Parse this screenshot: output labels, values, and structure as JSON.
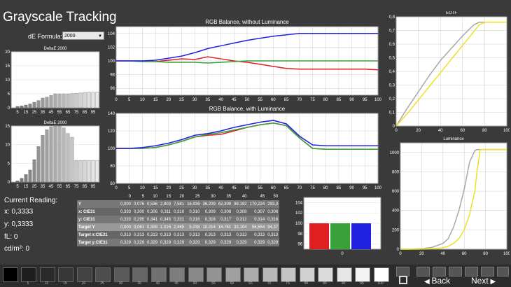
{
  "app_title": "Grayscale Tracking",
  "de_formula": {
    "label": "dE Formula:",
    "value": "2000"
  },
  "colors": {
    "red": "#e02020",
    "green": "#3aa03a",
    "blue": "#2020e0",
    "gray_curve": "#a8a8a8",
    "yellow_curve": "#f0e020"
  },
  "deltae_upper": {
    "title": "DeltaE 2000",
    "y_ticks": [
      "0",
      "5",
      "10",
      "15",
      "20"
    ],
    "x_ticks": [
      "5",
      "15",
      "25",
      "35",
      "45",
      "55",
      "65",
      "75",
      "85",
      "95"
    ],
    "ylim": [
      0,
      20
    ],
    "values": [
      0,
      0.5,
      0.7,
      1.0,
      1.4,
      2.0,
      2.6,
      3.5,
      3.8,
      4.4,
      5.0,
      5.0,
      5.0,
      5.0,
      5.1,
      5.2,
      5.3,
      5.5,
      5.6,
      5.6,
      5.7
    ]
  },
  "deltae_lower": {
    "title": "DeltaE 2000",
    "y_ticks": [
      "0",
      "5",
      "10",
      "15"
    ],
    "x_ticks": [
      "5",
      "15",
      "25",
      "35",
      "45",
      "55",
      "65",
      "75",
      "85",
      "95"
    ],
    "ylim": [
      0,
      15
    ],
    "values": [
      0,
      0.3,
      1.0,
      2.0,
      3.2,
      6.0,
      9.5,
      12.5,
      14.0,
      14.8,
      14.9,
      15.0,
      14.5,
      13.0,
      12.0,
      5.8,
      5.8,
      5.8,
      5.8,
      5.8,
      5.8
    ]
  },
  "rgb_without_lum": {
    "title": "RGB Balance, without Luminance",
    "y_ticks": [
      "96",
      "98",
      "100",
      "102",
      "104"
    ],
    "x_ticks": [
      "0",
      "5",
      "10",
      "15",
      "20",
      "25",
      "30",
      "35",
      "40",
      "45",
      "50",
      "55",
      "60",
      "65",
      "70",
      "75",
      "80",
      "85",
      "90",
      "95",
      "100"
    ],
    "ylim": [
      95,
      105
    ],
    "x": [
      0,
      5,
      10,
      15,
      20,
      25,
      30,
      35,
      40,
      45,
      50,
      55,
      60,
      65,
      70,
      75,
      80,
      85,
      90,
      95,
      100
    ],
    "series": [
      {
        "name": "Red",
        "values": [
          100,
          100,
          100,
          99.9,
          100.1,
          100.3,
          100.2,
          100.6,
          100.3,
          100.0,
          99.8,
          99.5,
          99.2,
          98.9,
          98.8,
          98.8,
          98.8,
          98.8,
          98.8,
          98.8,
          98.7
        ]
      },
      {
        "name": "Green",
        "values": [
          100,
          100,
          99.9,
          99.9,
          99.8,
          99.8,
          99.8,
          99.7,
          99.8,
          99.9,
          100,
          100,
          100,
          100,
          100,
          100,
          100,
          100,
          100,
          100,
          100
        ]
      },
      {
        "name": "Blue",
        "values": [
          100,
          100,
          100,
          100.1,
          100.4,
          100.7,
          101.2,
          101.8,
          102.2,
          102.6,
          103.0,
          103.3,
          103.6,
          103.8,
          104.0,
          104.0,
          104.0,
          104.0,
          104.0,
          104.0,
          104.0
        ]
      }
    ]
  },
  "rgb_with_lum": {
    "title": "RGB Balance, with Luminance",
    "y_ticks": [
      "60",
      "80",
      "100",
      "120",
      "140"
    ],
    "x_ticks": [
      "0",
      "5",
      "10",
      "15",
      "20",
      "25",
      "30",
      "35",
      "40",
      "45",
      "50",
      "55",
      "60",
      "65",
      "70",
      "75",
      "80",
      "85",
      "90",
      "95",
      "100"
    ],
    "ylim": [
      60,
      140
    ],
    "x": [
      0,
      5,
      10,
      15,
      20,
      25,
      30,
      35,
      40,
      45,
      50,
      55,
      60,
      65,
      70,
      75,
      80,
      85,
      90,
      95,
      100
    ],
    "series": [
      {
        "name": "Red",
        "values": [
          100,
          100,
          100,
          101,
          104,
          108,
          113,
          115,
          116,
          120,
          124,
          127,
          129,
          126,
          112,
          100,
          99,
          99,
          99,
          99,
          99
        ]
      },
      {
        "name": "Green",
        "values": [
          100,
          100,
          100,
          101,
          104,
          108,
          113,
          116,
          118,
          121,
          124,
          127,
          129,
          126,
          112,
          100,
          99,
          99,
          99,
          99,
          99
        ]
      },
      {
        "name": "Blue",
        "values": [
          100,
          100,
          101,
          103,
          106,
          110,
          115,
          117,
          120,
          124,
          127,
          130,
          132,
          128,
          114,
          104,
          103,
          103,
          103,
          103,
          103
        ]
      }
    ]
  },
  "eotf": {
    "title": "EOTF",
    "y_ticks": [
      "0",
      "0,1",
      "0,2",
      "0,3",
      "0,4",
      "0,5",
      "0,6",
      "0,7",
      "0,8"
    ],
    "x_ticks": [
      "0",
      "20",
      "40",
      "60",
      "80",
      "100"
    ],
    "ylim": [
      0,
      0.8
    ],
    "x": [
      0,
      10,
      20,
      30,
      40,
      50,
      60,
      70,
      75,
      80,
      100
    ],
    "series": [
      {
        "name": "Measured",
        "values": [
          0,
          0.13,
          0.25,
          0.37,
          0.48,
          0.57,
          0.66,
          0.74,
          0.76,
          0.76,
          0.76
        ]
      },
      {
        "name": "Target",
        "values": [
          0,
          0.09,
          0.19,
          0.29,
          0.39,
          0.49,
          0.59,
          0.69,
          0.74,
          0.76,
          0.76
        ]
      }
    ]
  },
  "luminance": {
    "title": "Luminance",
    "y_ticks": [
      "0",
      "200",
      "400",
      "600",
      "800",
      "1000"
    ],
    "x_ticks": [
      "0",
      "20",
      "40",
      "60",
      "80",
      "100"
    ],
    "ylim": [
      0,
      1100
    ],
    "x": [
      0,
      10,
      20,
      30,
      40,
      45,
      50,
      55,
      60,
      65,
      70,
      72,
      75,
      80,
      100
    ],
    "series": [
      {
        "name": "Measured",
        "values": [
          0,
          1,
          5,
          20,
          60,
          110,
          230,
          400,
          620,
          900,
          1020,
          1030,
          1030,
          1030,
          1030
        ]
      },
      {
        "name": "Target",
        "values": [
          0,
          0,
          1,
          5,
          15,
          30,
          60,
          110,
          200,
          360,
          600,
          800,
          1030,
          1030,
          1030
        ]
      }
    ]
  },
  "table": {
    "columns": [
      "",
      "0",
      "5",
      "10",
      "15",
      "20",
      "25",
      "30",
      "35",
      "40",
      "45",
      "50"
    ],
    "rows": [
      {
        "label": "Y",
        "cells": [
          "0,000",
          "0,076",
          "0,536",
          "2,803",
          "7,581",
          "16,939",
          "36,209",
          "62,309",
          "98,192",
          "170,224",
          "293,3"
        ]
      },
      {
        "label": "x: CIE31",
        "cells": [
          "0,333",
          "0,300",
          "0,306",
          "0,311",
          "0,310",
          "0,310",
          "0,309",
          "0,308",
          "0,308",
          "0,307",
          "0,306"
        ]
      },
      {
        "label": "y: CIE31",
        "cells": [
          "0,333",
          "0,295",
          "0,341",
          "0,345",
          "0,331",
          "0,316",
          "0,316",
          "0,317",
          "0,312",
          "0,314",
          "0,316"
        ]
      },
      {
        "label": "Target Y",
        "cells": [
          "0,000",
          "0,061",
          "0,328",
          "1,015",
          "2,465",
          "5,238",
          "10,214",
          "18,781",
          "33,104",
          "56,554",
          "94,37"
        ]
      },
      {
        "label": "Target x:CIE31",
        "cells": [
          "0,313",
          "0,313",
          "0,313",
          "0,313",
          "0,313",
          "0,313",
          "0,313",
          "0,313",
          "0,313",
          "0,313",
          "0,313"
        ]
      },
      {
        "label": "Target y:CIE31",
        "cells": [
          "0,329",
          "0,329",
          "0,329",
          "0,329",
          "0,329",
          "0,329",
          "0,329",
          "0,329",
          "0,329",
          "0,329",
          "0,329"
        ]
      }
    ]
  },
  "current_reading": {
    "header": "Current Reading:",
    "x": "x: 0,3333",
    "y": "y: 0,3333",
    "fL": "fL: 0",
    "cdm2": "cd/m²: 0"
  },
  "rgb_bars": {
    "y_ticks": [
      "96",
      "98",
      "100",
      "102",
      "104"
    ],
    "x_label": "0",
    "ylim": [
      95,
      105
    ],
    "values": [
      100,
      100,
      100
    ]
  },
  "swatches": {
    "labels": [
      "5",
      "10",
      "15",
      "20",
      "25",
      "30",
      "35",
      "40",
      "45",
      "50",
      "55",
      "60",
      "65",
      "70",
      "75",
      "80",
      "85",
      "90",
      "95",
      "100"
    ]
  },
  "nav": {
    "back_label": "Back",
    "next_label": "Next"
  }
}
